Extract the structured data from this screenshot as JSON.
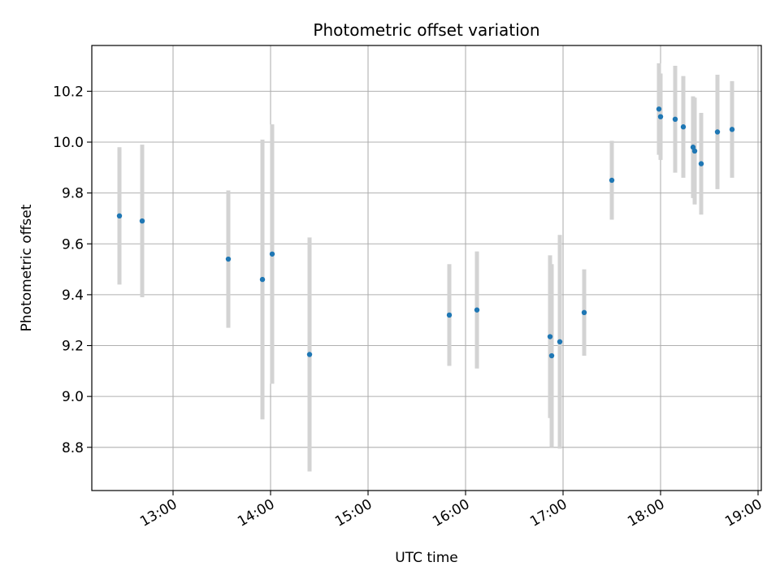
{
  "chart_data": {
    "type": "scatter",
    "title": "Photometric offset variation",
    "xlabel": "UTC time",
    "ylabel": "Photometric offset",
    "xlim": [
      "12:10",
      "19:02"
    ],
    "ylim": [
      8.63,
      10.38
    ],
    "grid": true,
    "x_ticks": [
      "13:00",
      "14:00",
      "15:00",
      "16:00",
      "17:00",
      "18:00",
      "19:00"
    ],
    "y_ticks": [
      8.8,
      9.0,
      9.2,
      9.4,
      9.6,
      9.8,
      10.0,
      10.2
    ],
    "y_tick_labels": [
      "8.8",
      "9.0",
      "9.2",
      "9.4",
      "9.6",
      "9.8",
      "10.0",
      "10.2"
    ],
    "series": [
      {
        "marker_color": "#1f77b4",
        "errorbar_color": "#d3d3d3",
        "points": [
          {
            "x": "12:27",
            "y": 9.71,
            "err": 0.27
          },
          {
            "x": "12:41",
            "y": 9.69,
            "err": 0.3
          },
          {
            "x": "13:34",
            "y": 9.54,
            "err": 0.27
          },
          {
            "x": "13:55",
            "y": 9.46,
            "err": 0.55
          },
          {
            "x": "14:01",
            "y": 9.56,
            "err": 0.51
          },
          {
            "x": "14:24",
            "y": 9.165,
            "err": 0.46
          },
          {
            "x": "15:50",
            "y": 9.32,
            "err": 0.2
          },
          {
            "x": "16:07",
            "y": 9.34,
            "err": 0.23
          },
          {
            "x": "16:52",
            "y": 9.235,
            "err": 0.32
          },
          {
            "x": "16:53",
            "y": 9.16,
            "err": 0.36
          },
          {
            "x": "16:58",
            "y": 9.215,
            "err": 0.42
          },
          {
            "x": "17:13",
            "y": 9.33,
            "err": 0.17
          },
          {
            "x": "17:30",
            "y": 9.85,
            "err": 0.155
          },
          {
            "x": "17:59",
            "y": 10.13,
            "err": 0.18
          },
          {
            "x": "18:00",
            "y": 10.1,
            "err": 0.17
          },
          {
            "x": "18:09",
            "y": 10.09,
            "err": 0.21
          },
          {
            "x": "18:14",
            "y": 10.06,
            "err": 0.2
          },
          {
            "x": "18:20",
            "y": 9.98,
            "err": 0.2
          },
          {
            "x": "18:21",
            "y": 9.965,
            "err": 0.21
          },
          {
            "x": "18:25",
            "y": 9.915,
            "err": 0.2
          },
          {
            "x": "18:35",
            "y": 10.04,
            "err": 0.225
          },
          {
            "x": "18:44",
            "y": 10.05,
            "err": 0.19
          }
        ]
      }
    ]
  }
}
